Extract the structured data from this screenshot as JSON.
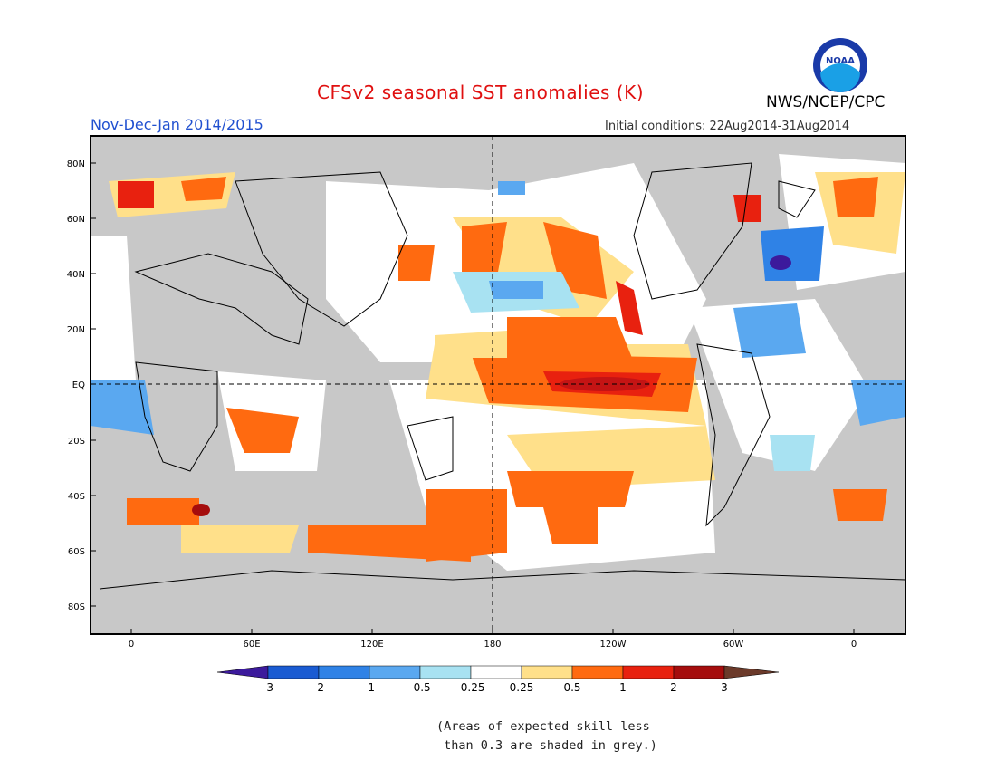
{
  "title": "CFSv2 seasonal SST anomalies (K)",
  "season": "Nov-Dec-Jan 2014/2015",
  "initial_conditions": "Initial conditions: 22Aug2014-31Aug2014",
  "agency": "NWS/NCEP/CPC",
  "logo_text": "NOAA",
  "map": {
    "lon_labels": [
      "0",
      "60E",
      "120E",
      "180",
      "120W",
      "60W",
      "0"
    ],
    "lat_labels": [
      "80N",
      "60N",
      "40N",
      "20N",
      "EQ",
      "20S",
      "40S",
      "60S",
      "80S"
    ],
    "land_color": "#c8c8c8",
    "background_color": "#c8c8c8"
  },
  "legend": {
    "ticks": [
      "-3",
      "-2",
      "-1",
      "-0.5",
      "-0.25",
      "0.25",
      "0.5",
      "1",
      "2",
      "3"
    ],
    "colors": [
      "#3c1a9c",
      "#1a5bd2",
      "#2f82e6",
      "#5aa8f0",
      "#a8e2f2",
      "#ffffff",
      "#ffe08a",
      "#ff6a10",
      "#e8210f",
      "#a50d0d",
      "#6b3a2a"
    ]
  },
  "note_line1": "(Areas of expected skill less",
  "note_line2": " than 0.3 are shaded in grey.)"
}
